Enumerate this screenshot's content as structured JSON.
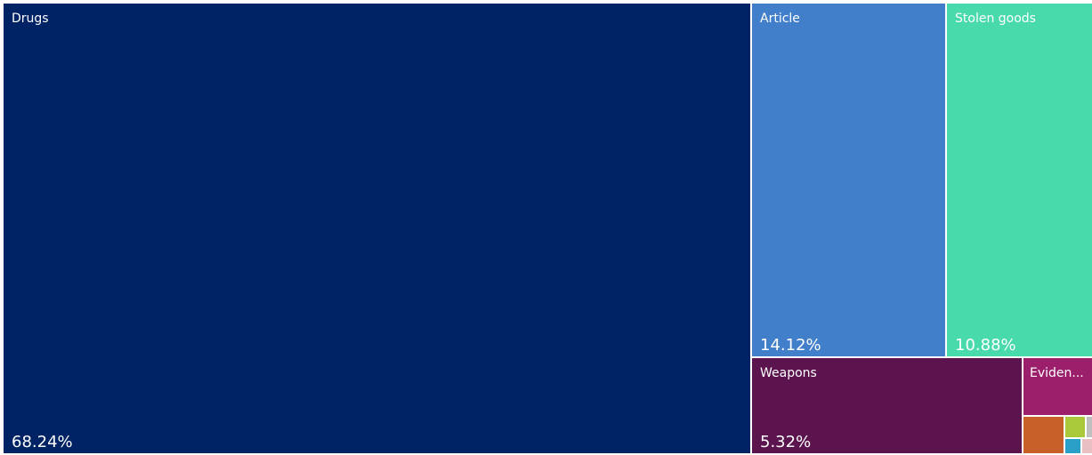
{
  "chart_data": {
    "type": "treemap",
    "title": "",
    "items": [
      {
        "label": "Drugs",
        "value_label": "68.24%",
        "value": 68.24,
        "color": "#002366"
      },
      {
        "label": "Article",
        "value_label": "14.12%",
        "value": 14.12,
        "color": "#417fca"
      },
      {
        "label": "Stolen goods",
        "value_label": "10.88%",
        "value": 10.88,
        "color": "#48d9ad"
      },
      {
        "label": "Weapons",
        "value_label": "5.32%",
        "value": 5.32,
        "color": "#5c144f"
      },
      {
        "label": "Eviden...",
        "value_label": "",
        "value": 0.8,
        "color": "#9b1f6b"
      },
      {
        "label": "",
        "value_label": "",
        "value": 0.25,
        "color": "#c8602a"
      },
      {
        "label": "",
        "value_label": "",
        "value": 0.1,
        "color": "#a9c93a"
      },
      {
        "label": "",
        "value_label": "",
        "value": 0.05,
        "color": "#bfbfbf"
      },
      {
        "label": "",
        "value_label": "",
        "value": 0.05,
        "color": "#2a9fc8"
      },
      {
        "label": "",
        "value_label": "",
        "value": 0.03,
        "color": "#e9bfc3"
      }
    ]
  }
}
